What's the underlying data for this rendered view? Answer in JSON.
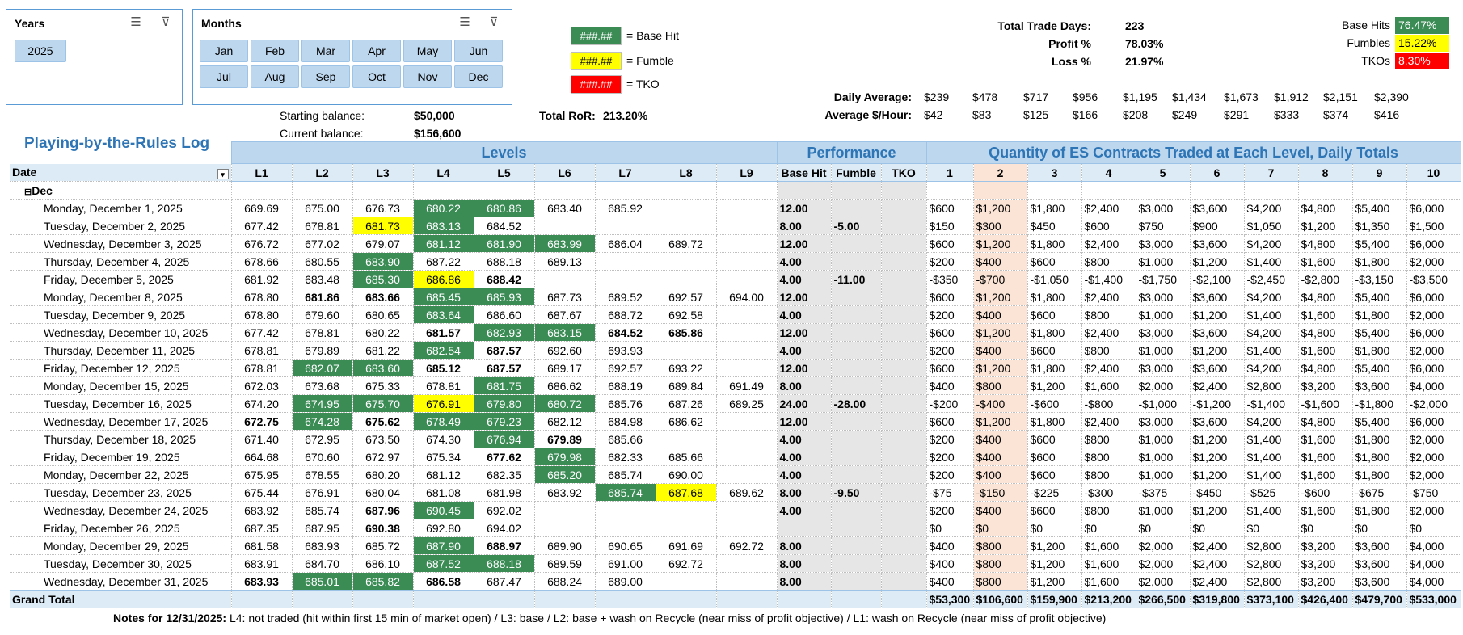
{
  "slicers": {
    "years": {
      "title": "Years",
      "items": [
        "2025"
      ]
    },
    "months": {
      "title": "Months",
      "items": [
        "Jan",
        "Feb",
        "Mar",
        "Apr",
        "May",
        "Jun",
        "Jul",
        "Aug",
        "Sep",
        "Oct",
        "Nov",
        "Dec"
      ]
    }
  },
  "legend": {
    "swatch_text": "###.##",
    "base_hit": "= Base Hit",
    "fumble": "= Fumble",
    "tko": "= TKO"
  },
  "balances": {
    "starting_label": "Starting balance:",
    "starting_value": "$50,000",
    "current_label": "Current balance:",
    "current_value": "$156,600",
    "ror_label": "Total RoR:",
    "ror_value": "213.20%"
  },
  "stats": {
    "trade_days_label": "Total Trade Days:",
    "trade_days": "223",
    "profit_label": "Profit %",
    "profit": "78.03%",
    "loss_label": "Loss %",
    "loss": "21.97%",
    "base_hits_label": "Base Hits",
    "base_hits": "76.47%",
    "fumbles_label": "Fumbles",
    "fumbles": "15.22%",
    "tkos_label": "TKOs",
    "tkos": "8.30%"
  },
  "averages": {
    "daily_label": "Daily Average:",
    "daily": [
      "$239",
      "$478",
      "$717",
      "$956",
      "$1,195",
      "$1,434",
      "$1,673",
      "$1,912",
      "$2,151",
      "$2,390"
    ],
    "hourly_label": "Average $/Hour:",
    "hourly": [
      "$42",
      "$83",
      "$125",
      "$166",
      "$208",
      "$249",
      "$291",
      "$333",
      "$374",
      "$416"
    ]
  },
  "log_title": "Playing-by-the-Rules Log",
  "bands": {
    "levels": "Levels",
    "performance": "Performance",
    "quantity": "Quantity of ES Contracts Traded at Each Level, Daily Totals"
  },
  "headers": {
    "date": "Date",
    "levels": [
      "L1",
      "L2",
      "L3",
      "L4",
      "L5",
      "L6",
      "L7",
      "L8",
      "L9"
    ],
    "performance": [
      "Base Hit",
      "Fumble",
      "TKO"
    ],
    "quantities": [
      "1",
      "2",
      "3",
      "4",
      "5",
      "6",
      "7",
      "8",
      "9",
      "10"
    ]
  },
  "group_label": "Dec",
  "rows": [
    {
      "date": "Monday, December 1, 2025",
      "l": [
        "669.69",
        "675.00",
        "676.73",
        "680.22",
        "680.86",
        "683.40",
        "685.92",
        "",
        ""
      ],
      "s": [
        "",
        "",
        "",
        "h",
        "h",
        "",
        "",
        "",
        ""
      ],
      "bold": [],
      "bh": "12.00",
      "fu": "",
      "tk": "",
      "q": [
        "$600",
        "$1,200",
        "$1,800",
        "$2,400",
        "$3,000",
        "$3,600",
        "$4,200",
        "$4,800",
        "$5,400",
        "$6,000"
      ]
    },
    {
      "date": "Tuesday, December 2, 2025",
      "l": [
        "677.42",
        "678.81",
        "681.73",
        "683.13",
        "684.52",
        "",
        "",
        "",
        ""
      ],
      "s": [
        "",
        "",
        "f",
        "h",
        "",
        "",
        "",
        "",
        ""
      ],
      "bold": [],
      "bh": "8.00",
      "fu": "-5.00",
      "tk": "",
      "q": [
        "$150",
        "$300",
        "$450",
        "$600",
        "$750",
        "$900",
        "$1,050",
        "$1,200",
        "$1,350",
        "$1,500"
      ]
    },
    {
      "date": "Wednesday, December 3, 2025",
      "l": [
        "676.72",
        "677.02",
        "679.07",
        "681.12",
        "681.90",
        "683.99",
        "686.04",
        "689.72",
        ""
      ],
      "s": [
        "",
        "",
        "",
        "h",
        "h",
        "h",
        "",
        "",
        ""
      ],
      "bold": [],
      "bh": "12.00",
      "fu": "",
      "tk": "",
      "q": [
        "$600",
        "$1,200",
        "$1,800",
        "$2,400",
        "$3,000",
        "$3,600",
        "$4,200",
        "$4,800",
        "$5,400",
        "$6,000"
      ]
    },
    {
      "date": "Thursday, December 4, 2025",
      "l": [
        "678.66",
        "680.55",
        "683.90",
        "687.22",
        "688.18",
        "689.13",
        "",
        "",
        ""
      ],
      "s": [
        "",
        "",
        "h",
        "",
        "",
        "",
        "",
        "",
        ""
      ],
      "bold": [],
      "bh": "4.00",
      "fu": "",
      "tk": "",
      "q": [
        "$200",
        "$400",
        "$600",
        "$800",
        "$1,000",
        "$1,200",
        "$1,400",
        "$1,600",
        "$1,800",
        "$2,000"
      ]
    },
    {
      "date": "Friday, December 5, 2025",
      "l": [
        "681.92",
        "683.48",
        "685.30",
        "686.86",
        "688.42",
        "",
        "",
        "",
        ""
      ],
      "s": [
        "",
        "",
        "h",
        "f",
        "",
        "",
        "",
        "",
        ""
      ],
      "bold": [
        4
      ],
      "bh": "4.00",
      "fu": "-11.00",
      "tk": "",
      "q": [
        "-$350",
        "-$700",
        "-$1,050",
        "-$1,400",
        "-$1,750",
        "-$2,100",
        "-$2,450",
        "-$2,800",
        "-$3,150",
        "-$3,500"
      ]
    },
    {
      "date": "Monday, December 8, 2025",
      "l": [
        "678.80",
        "681.86",
        "683.66",
        "685.45",
        "685.93",
        "687.73",
        "689.52",
        "692.57",
        "694.00"
      ],
      "s": [
        "",
        "",
        "",
        "h",
        "h",
        "",
        "",
        "",
        ""
      ],
      "bold": [
        1,
        2
      ],
      "bh": "12.00",
      "fu": "",
      "tk": "",
      "q": [
        "$600",
        "$1,200",
        "$1,800",
        "$2,400",
        "$3,000",
        "$3,600",
        "$4,200",
        "$4,800",
        "$5,400",
        "$6,000"
      ]
    },
    {
      "date": "Tuesday, December 9, 2025",
      "l": [
        "678.80",
        "679.60",
        "680.65",
        "683.64",
        "686.60",
        "687.67",
        "688.72",
        "692.58",
        ""
      ],
      "s": [
        "",
        "",
        "",
        "h",
        "",
        "",
        "",
        "",
        ""
      ],
      "bold": [],
      "bh": "4.00",
      "fu": "",
      "tk": "",
      "q": [
        "$200",
        "$400",
        "$600",
        "$800",
        "$1,000",
        "$1,200",
        "$1,400",
        "$1,600",
        "$1,800",
        "$2,000"
      ]
    },
    {
      "date": "Wednesday, December 10, 2025",
      "l": [
        "677.42",
        "678.81",
        "680.22",
        "681.57",
        "682.93",
        "683.15",
        "684.52",
        "685.86",
        ""
      ],
      "s": [
        "",
        "",
        "",
        "",
        "h",
        "h",
        "",
        "",
        ""
      ],
      "bold": [
        3,
        6,
        7
      ],
      "bh": "12.00",
      "fu": "",
      "tk": "",
      "q": [
        "$600",
        "$1,200",
        "$1,800",
        "$2,400",
        "$3,000",
        "$3,600",
        "$4,200",
        "$4,800",
        "$5,400",
        "$6,000"
      ]
    },
    {
      "date": "Thursday, December 11, 2025",
      "l": [
        "678.81",
        "679.89",
        "681.22",
        "682.54",
        "687.57",
        "692.60",
        "693.93",
        "",
        ""
      ],
      "s": [
        "",
        "",
        "",
        "h",
        "",
        "",
        "",
        "",
        ""
      ],
      "bold": [
        4
      ],
      "bh": "4.00",
      "fu": "",
      "tk": "",
      "q": [
        "$200",
        "$400",
        "$600",
        "$800",
        "$1,000",
        "$1,200",
        "$1,400",
        "$1,600",
        "$1,800",
        "$2,000"
      ]
    },
    {
      "date": "Friday, December 12, 2025",
      "l": [
        "678.81",
        "682.07",
        "683.60",
        "685.12",
        "687.57",
        "689.17",
        "692.57",
        "693.22",
        ""
      ],
      "s": [
        "",
        "h",
        "h",
        "",
        "",
        "",
        "",
        "",
        ""
      ],
      "bold": [
        3,
        4
      ],
      "bh": "12.00",
      "fu": "",
      "tk": "",
      "q": [
        "$600",
        "$1,200",
        "$1,800",
        "$2,400",
        "$3,000",
        "$3,600",
        "$4,200",
        "$4,800",
        "$5,400",
        "$6,000"
      ]
    },
    {
      "date": "Monday, December 15, 2025",
      "l": [
        "672.03",
        "673.68",
        "675.33",
        "678.81",
        "681.75",
        "686.62",
        "688.19",
        "689.84",
        "691.49"
      ],
      "s": [
        "",
        "",
        "",
        "",
        "h",
        "",
        "",
        "",
        ""
      ],
      "bold": [],
      "bh": "8.00",
      "fu": "",
      "tk": "",
      "q": [
        "$400",
        "$800",
        "$1,200",
        "$1,600",
        "$2,000",
        "$2,400",
        "$2,800",
        "$3,200",
        "$3,600",
        "$4,000"
      ]
    },
    {
      "date": "Tuesday, December 16, 2025",
      "l": [
        "674.20",
        "674.95",
        "675.70",
        "676.91",
        "679.80",
        "680.72",
        "685.76",
        "687.26",
        "689.25"
      ],
      "s": [
        "",
        "h",
        "h",
        "f",
        "h",
        "h",
        "",
        "",
        ""
      ],
      "bold": [],
      "bh": "24.00",
      "fu": "-28.00",
      "tk": "",
      "q": [
        "-$200",
        "-$400",
        "-$600",
        "-$800",
        "-$1,000",
        "-$1,200",
        "-$1,400",
        "-$1,600",
        "-$1,800",
        "-$2,000"
      ]
    },
    {
      "date": "Wednesday, December 17, 2025",
      "l": [
        "672.75",
        "674.28",
        "675.62",
        "678.49",
        "679.23",
        "682.12",
        "684.98",
        "686.62",
        ""
      ],
      "s": [
        "",
        "h",
        "",
        "h",
        "h",
        "",
        "",
        "",
        ""
      ],
      "bold": [
        0,
        2
      ],
      "bh": "12.00",
      "fu": "",
      "tk": "",
      "q": [
        "$600",
        "$1,200",
        "$1,800",
        "$2,400",
        "$3,000",
        "$3,600",
        "$4,200",
        "$4,800",
        "$5,400",
        "$6,000"
      ]
    },
    {
      "date": "Thursday, December 18, 2025",
      "l": [
        "671.40",
        "672.95",
        "673.50",
        "674.30",
        "676.94",
        "679.89",
        "685.66",
        "",
        ""
      ],
      "s": [
        "",
        "",
        "",
        "",
        "h",
        "",
        "",
        "",
        ""
      ],
      "bold": [
        5
      ],
      "bh": "4.00",
      "fu": "",
      "tk": "",
      "q": [
        "$200",
        "$400",
        "$600",
        "$800",
        "$1,000",
        "$1,200",
        "$1,400",
        "$1,600",
        "$1,800",
        "$2,000"
      ]
    },
    {
      "date": "Friday, December 19, 2025",
      "l": [
        "664.68",
        "670.60",
        "672.97",
        "675.34",
        "677.62",
        "679.98",
        "682.33",
        "685.66",
        ""
      ],
      "s": [
        "",
        "",
        "",
        "",
        "",
        "h",
        "",
        "",
        ""
      ],
      "bold": [
        4
      ],
      "bh": "4.00",
      "fu": "",
      "tk": "",
      "q": [
        "$200",
        "$400",
        "$600",
        "$800",
        "$1,000",
        "$1,200",
        "$1,400",
        "$1,600",
        "$1,800",
        "$2,000"
      ]
    },
    {
      "date": "Monday, December 22, 2025",
      "l": [
        "675.95",
        "678.55",
        "680.20",
        "681.12",
        "682.35",
        "685.20",
        "685.74",
        "690.00",
        ""
      ],
      "s": [
        "",
        "",
        "",
        "",
        "",
        "h",
        "",
        "",
        ""
      ],
      "bold": [],
      "bh": "4.00",
      "fu": "",
      "tk": "",
      "q": [
        "$200",
        "$400",
        "$600",
        "$800",
        "$1,000",
        "$1,200",
        "$1,400",
        "$1,600",
        "$1,800",
        "$2,000"
      ]
    },
    {
      "date": "Tuesday, December 23, 2025",
      "l": [
        "675.44",
        "676.91",
        "680.04",
        "681.08",
        "681.98",
        "683.92",
        "685.74",
        "687.68",
        "689.62"
      ],
      "s": [
        "",
        "",
        "",
        "",
        "",
        "",
        "h",
        "f",
        ""
      ],
      "bold": [],
      "bh": "8.00",
      "fu": "-9.50",
      "tk": "",
      "q": [
        "-$75",
        "-$150",
        "-$225",
        "-$300",
        "-$375",
        "-$450",
        "-$525",
        "-$600",
        "-$675",
        "-$750"
      ]
    },
    {
      "date": "Wednesday, December 24, 2025",
      "l": [
        "683.92",
        "685.74",
        "687.96",
        "690.45",
        "692.02",
        "",
        "",
        "",
        ""
      ],
      "s": [
        "",
        "",
        "",
        "h",
        "",
        "",
        "",
        "",
        ""
      ],
      "bold": [
        2
      ],
      "bh": "4.00",
      "fu": "",
      "tk": "",
      "q": [
        "$200",
        "$400",
        "$600",
        "$800",
        "$1,000",
        "$1,200",
        "$1,400",
        "$1,600",
        "$1,800",
        "$2,000"
      ]
    },
    {
      "date": "Friday, December 26, 2025",
      "l": [
        "687.35",
        "687.95",
        "690.38",
        "692.80",
        "694.02",
        "",
        "",
        "",
        ""
      ],
      "s": [
        "",
        "",
        "",
        "",
        "",
        "",
        "",
        "",
        ""
      ],
      "bold": [
        2
      ],
      "bh": "",
      "fu": "",
      "tk": "",
      "q": [
        "$0",
        "$0",
        "$0",
        "$0",
        "$0",
        "$0",
        "$0",
        "$0",
        "$0",
        "$0"
      ]
    },
    {
      "date": "Monday, December 29, 2025",
      "l": [
        "681.58",
        "683.93",
        "685.72",
        "687.90",
        "688.97",
        "689.90",
        "690.65",
        "691.69",
        "692.72"
      ],
      "s": [
        "",
        "",
        "",
        "h",
        "",
        "",
        "",
        "",
        ""
      ],
      "bold": [
        4
      ],
      "bh": "8.00",
      "fu": "",
      "tk": "",
      "q": [
        "$400",
        "$800",
        "$1,200",
        "$1,600",
        "$2,000",
        "$2,400",
        "$2,800",
        "$3,200",
        "$3,600",
        "$4,000"
      ]
    },
    {
      "date": "Tuesday, December 30, 2025",
      "l": [
        "683.91",
        "684.70",
        "686.10",
        "687.52",
        "688.18",
        "689.59",
        "691.00",
        "692.72",
        ""
      ],
      "s": [
        "",
        "",
        "",
        "h",
        "h",
        "",
        "",
        "",
        ""
      ],
      "bold": [],
      "bh": "8.00",
      "fu": "",
      "tk": "",
      "q": [
        "$400",
        "$800",
        "$1,200",
        "$1,600",
        "$2,000",
        "$2,400",
        "$2,800",
        "$3,200",
        "$3,600",
        "$4,000"
      ]
    },
    {
      "date": "Wednesday, December 31, 2025",
      "l": [
        "683.93",
        "685.01",
        "685.82",
        "686.58",
        "687.47",
        "688.24",
        "689.00",
        "",
        ""
      ],
      "s": [
        "",
        "h",
        "h",
        "",
        "",
        "",
        "",
        "",
        ""
      ],
      "bold": [
        0,
        3
      ],
      "bh": "8.00",
      "fu": "",
      "tk": "",
      "q": [
        "$400",
        "$800",
        "$1,200",
        "$1,600",
        "$2,000",
        "$2,400",
        "$2,800",
        "$3,200",
        "$3,600",
        "$4,000"
      ]
    }
  ],
  "grand_total": {
    "label": "Grand Total",
    "q": [
      "$53,300",
      "$106,600",
      "$159,900",
      "$213,200",
      "$266,500",
      "$319,800",
      "$373,100",
      "$426,400",
      "$479,700",
      "$533,000"
    ]
  },
  "notes": {
    "label": "Notes for 12/31/2025:",
    "text": "L4: not traded (hit within first 15 min of market open) / L3: base / L2: base + wash on Recycle (near miss of profit objective) / L1: wash on Recycle (near miss of profit objective)"
  },
  "colors": {
    "base_hit": "#3b8b55",
    "fumble": "#ffff00",
    "tko": "#ff0000",
    "header_band": "#bdd7ee",
    "accent": "#2e75b6"
  }
}
